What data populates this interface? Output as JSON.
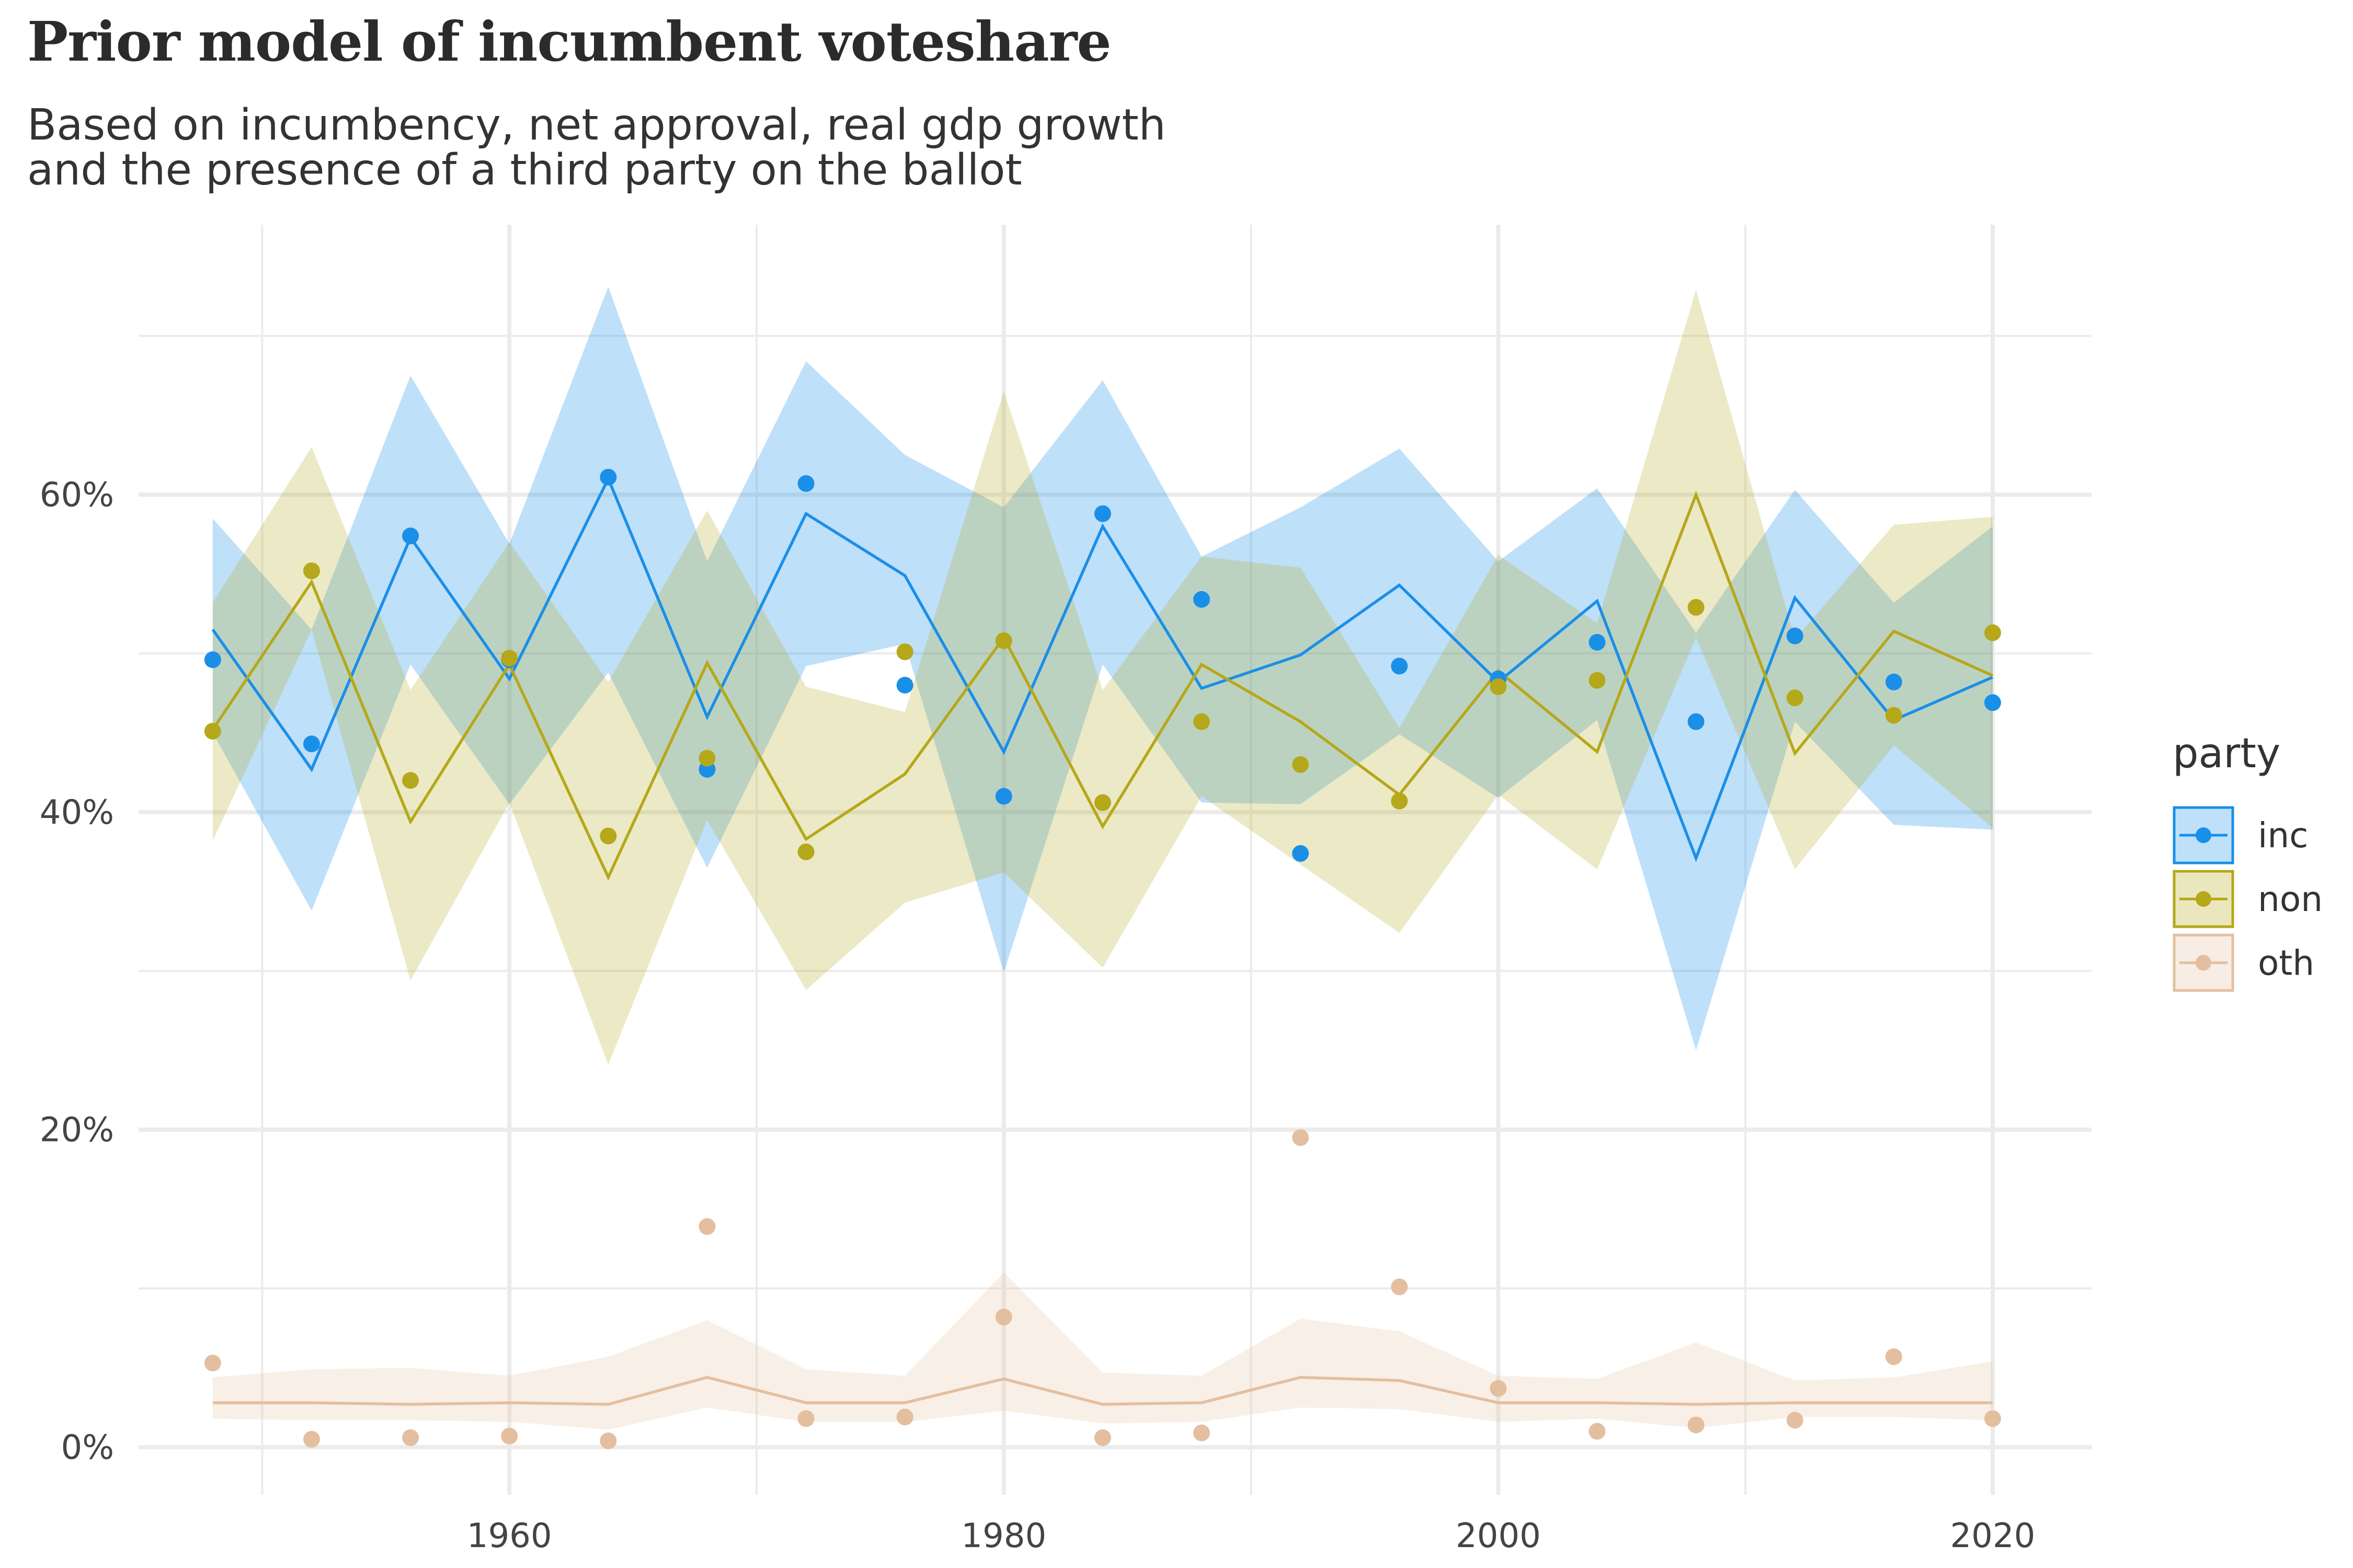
{
  "title": "Prior model of incumbent voteshare",
  "subtitle_lines": [
    "Based on incumbency, net approval, real gdp growth",
    "and the presence of a third party on the ballot"
  ],
  "colors": {
    "inc": "#1a8fe8",
    "non": "#b5a81a",
    "oth": "#e3bf9f",
    "grid": "#ebebeb"
  },
  "chart_data": {
    "type": "line",
    "title": "Prior model of incumbent voteshare",
    "xlabel": "",
    "ylabel": "",
    "xlim": [
      1945,
      2024
    ],
    "ylim": [
      -3,
      77
    ],
    "x_ticks": [
      1960,
      1980,
      2000,
      2020
    ],
    "y_ticks": [
      0,
      20,
      40,
      60
    ],
    "y_tick_labels": [
      "0%",
      "20%",
      "40%",
      "60%"
    ],
    "grid": true,
    "legend": {
      "title": "party",
      "position": "right",
      "entries": [
        "inc",
        "non",
        "oth"
      ]
    },
    "x": [
      1948,
      1952,
      1956,
      1960,
      1964,
      1968,
      1972,
      1976,
      1980,
      1984,
      1988,
      1992,
      1996,
      2000,
      2004,
      2008,
      2012,
      2016,
      2020
    ],
    "series": [
      {
        "name": "inc",
        "fitted": [
          51.5,
          42.7,
          57.3,
          48.4,
          61.0,
          46.0,
          58.8,
          54.9,
          43.8,
          58.0,
          47.8,
          49.9,
          54.3,
          48.2,
          53.3,
          37.1,
          53.5,
          45.8,
          48.5
        ],
        "lower": [
          45.0,
          33.8,
          49.3,
          40.5,
          48.8,
          36.5,
          49.2,
          50.6,
          29.9,
          49.3,
          40.6,
          40.5,
          44.9,
          40.9,
          45.8,
          25.0,
          45.7,
          39.2,
          38.9
        ],
        "upper": [
          58.5,
          51.5,
          67.5,
          56.9,
          73.1,
          55.8,
          68.4,
          62.5,
          59.2,
          67.2,
          56.1,
          59.2,
          62.9,
          55.8,
          60.4,
          51.3,
          60.3,
          53.2,
          58.0
        ],
        "actual": [
          49.6,
          44.3,
          57.4,
          49.6,
          61.1,
          42.7,
          60.7,
          48.0,
          41.0,
          58.8,
          53.4,
          37.4,
          49.2,
          48.4,
          50.7,
          45.7,
          51.1,
          48.2,
          46.9
        ]
      },
      {
        "name": "non",
        "fitted": [
          45.2,
          54.5,
          39.4,
          49.3,
          35.9,
          49.4,
          38.3,
          42.4,
          51.0,
          39.1,
          49.3,
          45.7,
          41.1,
          48.9,
          43.8,
          60.0,
          43.7,
          51.4,
          48.6
        ],
        "lower": [
          38.2,
          51.5,
          29.4,
          40.6,
          24.1,
          39.5,
          28.8,
          34.3,
          36.2,
          30.2,
          41.0,
          36.7,
          32.4,
          41.1,
          36.4,
          51.0,
          36.4,
          44.2,
          39.0
        ],
        "upper": [
          53.2,
          63.0,
          47.7,
          57.0,
          48.2,
          59.0,
          47.9,
          46.3,
          66.5,
          47.7,
          56.1,
          55.4,
          45.3,
          56.2,
          51.9,
          72.9,
          50.9,
          58.1,
          58.6
        ],
        "actual": [
          45.1,
          55.2,
          42.0,
          49.7,
          38.5,
          43.4,
          37.5,
          50.1,
          50.8,
          40.6,
          45.7,
          43.0,
          40.7,
          47.9,
          48.3,
          52.9,
          47.2,
          46.1,
          51.3
        ]
      },
      {
        "name": "oth",
        "fitted": [
          2.8,
          2.8,
          2.7,
          2.8,
          2.7,
          4.4,
          2.8,
          2.8,
          4.3,
          2.7,
          2.8,
          4.4,
          4.2,
          2.8,
          2.8,
          2.7,
          2.8,
          2.8,
          2.8
        ],
        "lower": [
          1.8,
          1.7,
          1.7,
          1.6,
          1.1,
          2.5,
          1.6,
          1.6,
          2.3,
          1.5,
          1.6,
          2.5,
          2.4,
          1.6,
          1.8,
          1.2,
          1.9,
          1.9,
          1.7
        ],
        "upper": [
          4.4,
          4.9,
          5.0,
          4.5,
          5.7,
          8.0,
          4.9,
          4.5,
          11.0,
          4.7,
          4.5,
          8.1,
          7.3,
          4.5,
          4.3,
          6.6,
          4.2,
          4.4,
          5.4
        ],
        "actual": [
          5.3,
          0.5,
          0.6,
          0.7,
          0.4,
          13.9,
          1.8,
          1.9,
          8.2,
          0.6,
          0.9,
          19.5,
          10.1,
          3.7,
          1.0,
          1.4,
          1.7,
          5.7,
          1.8
        ]
      }
    ]
  }
}
